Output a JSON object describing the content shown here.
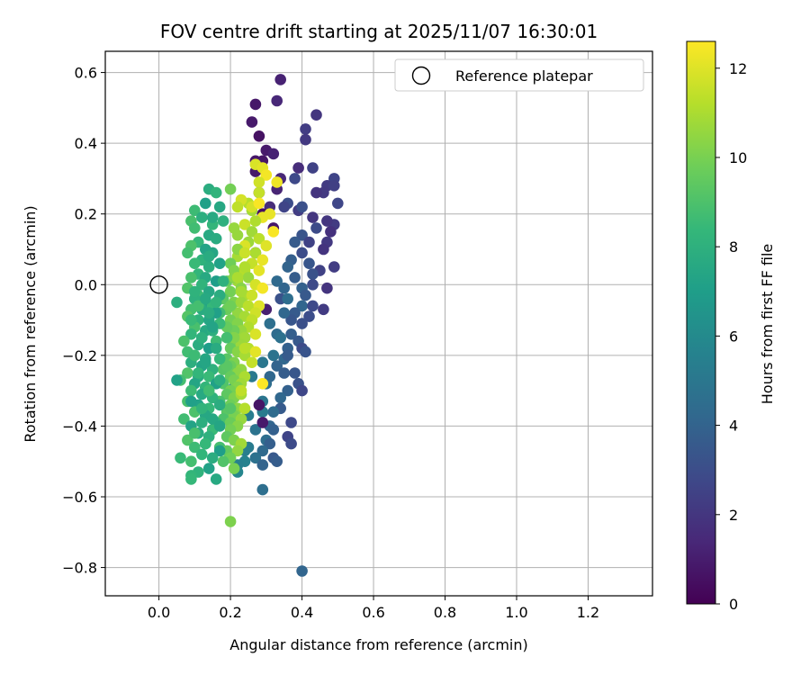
{
  "chart_data": {
    "type": "scatter",
    "title": "FOV centre drift starting at 2025/11/07 16:30:01",
    "xlabel": "Angular distance from reference (arcmin)",
    "ylabel": "Rotation from reference (arcmin)",
    "xlim": [
      -0.15,
      1.38
    ],
    "ylim": [
      -0.88,
      0.66
    ],
    "xticks": [
      0.0,
      0.2,
      0.4,
      0.6,
      0.8,
      1.0,
      1.2
    ],
    "xtick_labels": [
      "0.0",
      "0.2",
      "0.4",
      "0.6",
      "0.8",
      "1.0",
      "1.2"
    ],
    "yticks": [
      0.6,
      0.4,
      0.2,
      0.0,
      -0.2,
      -0.4,
      -0.6,
      -0.8
    ],
    "ytick_labels": [
      "0.6",
      "0.4",
      "0.2",
      "0.0",
      "−0.2",
      "−0.4",
      "−0.6",
      "−0.8"
    ],
    "grid": true,
    "legend": {
      "placement": "top-right",
      "entries": [
        "Reference platepar"
      ]
    },
    "reference_point": {
      "x": 0.0,
      "y": 0.0
    },
    "colorbar": {
      "label": "Hours from first FF file",
      "range": [
        0,
        12.6
      ],
      "ticks": [
        0,
        2,
        4,
        6,
        8,
        10,
        12
      ],
      "tick_labels": [
        "0",
        "2",
        "4",
        "6",
        "8",
        "10",
        "12"
      ],
      "colormap": "viridis"
    },
    "colormap_stops": [
      "#440154",
      "#482878",
      "#3e4989",
      "#31688e",
      "#26828e",
      "#1f9e89",
      "#35b779",
      "#6ece58",
      "#b5de2b",
      "#fde725"
    ],
    "series": [
      {
        "x": [
          0.34,
          0.33,
          0.44,
          0.27,
          0.26,
          0.41,
          0.41,
          0.28,
          0.3,
          0.29,
          0.32,
          0.27,
          0.43,
          0.39,
          0.49,
          0.47,
          0.34,
          0.38,
          0.49,
          0.46,
          0.44,
          0.5,
          0.36,
          0.31,
          0.39,
          0.35,
          0.4,
          0.43,
          0.49,
          0.47,
          0.48,
          0.44,
          0.47,
          0.4,
          0.42,
          0.38,
          0.46,
          0.4,
          0.49,
          0.42,
          0.37,
          0.45,
          0.43,
          0.36,
          0.38,
          0.43,
          0.4,
          0.41,
          0.35,
          0.33,
          0.34,
          0.47,
          0.4,
          0.43,
          0.38,
          0.36,
          0.42,
          0.46,
          0.37,
          0.35,
          0.31,
          0.4,
          0.33,
          0.37,
          0.39,
          0.34,
          0.36,
          0.4,
          0.35,
          0.41,
          0.36,
          0.32,
          0.33,
          0.29,
          0.35,
          0.3,
          0.38,
          0.26,
          0.39,
          0.4,
          0.36,
          0.34,
          0.29,
          0.34,
          0.32,
          0.29,
          0.37,
          0.31,
          0.25,
          0.27,
          0.32,
          0.3,
          0.36,
          0.31,
          0.37,
          0.29,
          0.25,
          0.24,
          0.32,
          0.27,
          0.29,
          0.24,
          0.33,
          0.22,
          0.22,
          0.29,
          0.24,
          0.31,
          0.21,
          0.28,
          0.29,
          0.4,
          0.3,
          0.29,
          0.27,
          0.28,
          0.32,
          0.27,
          0.33
        ],
        "y": [
          0.58,
          0.52,
          0.48,
          0.51,
          0.46,
          0.44,
          0.41,
          0.42,
          0.38,
          0.35,
          0.37,
          0.35,
          0.33,
          0.33,
          0.3,
          0.28,
          0.3,
          0.3,
          0.28,
          0.26,
          0.26,
          0.23,
          0.23,
          0.22,
          0.21,
          0.22,
          0.22,
          0.19,
          0.17,
          0.18,
          0.15,
          0.16,
          0.12,
          0.14,
          0.12,
          0.12,
          0.1,
          0.09,
          0.05,
          0.06,
          0.07,
          0.04,
          0.03,
          0.05,
          0.02,
          0.0,
          -0.01,
          -0.03,
          -0.01,
          0.01,
          -0.04,
          -0.01,
          -0.06,
          -0.06,
          -0.08,
          -0.04,
          -0.09,
          -0.07,
          -0.1,
          -0.08,
          -0.11,
          -0.11,
          -0.14,
          -0.14,
          -0.16,
          -0.15,
          -0.18,
          -0.18,
          -0.21,
          -0.19,
          -0.2,
          -0.2,
          -0.23,
          -0.22,
          -0.25,
          -0.28,
          -0.25,
          -0.26,
          -0.28,
          -0.3,
          -0.3,
          -0.32,
          -0.33,
          -0.35,
          -0.36,
          -0.36,
          -0.39,
          -0.4,
          -0.37,
          -0.41,
          -0.41,
          -0.44,
          -0.43,
          -0.45,
          -0.45,
          -0.47,
          -0.46,
          -0.47,
          -0.49,
          -0.49,
          -0.51,
          -0.5,
          -0.5,
          -0.51,
          -0.53,
          -0.58,
          -0.15,
          -0.26,
          -0.29,
          -0.34,
          -0.39,
          -0.81,
          -0.07,
          0.2,
          0.32,
          0.26,
          0.16,
          0.09,
          0.27
        ],
        "c": [
          1.2,
          1.4,
          2.0,
          0.8,
          0.9,
          2.3,
          2.1,
          0.6,
          0.9,
          0.7,
          1.2,
          0.8,
          2.5,
          1.6,
          2.6,
          2.2,
          1.4,
          2.8,
          2.4,
          2.1,
          1.9,
          2.7,
          3.0,
          1.6,
          2.3,
          2.6,
          3.1,
          2.0,
          2.2,
          2.0,
          1.8,
          2.9,
          2.1,
          3.3,
          2.5,
          3.6,
          1.9,
          3.0,
          2.3,
          3.4,
          3.8,
          2.5,
          3.2,
          4.0,
          3.7,
          2.9,
          3.9,
          3.5,
          4.1,
          4.3,
          3.2,
          1.9,
          4.1,
          2.8,
          3.6,
          4.5,
          3.0,
          2.2,
          3.4,
          4.2,
          4.6,
          3.1,
          4.4,
          3.8,
          3.5,
          4.7,
          3.9,
          2.9,
          4.2,
          3.3,
          3.6,
          4.8,
          4.0,
          5.0,
          3.7,
          4.5,
          3.4,
          5.1,
          3.2,
          2.7,
          3.9,
          4.2,
          4.9,
          3.6,
          4.4,
          5.2,
          2.8,
          4.1,
          5.3,
          4.8,
          3.9,
          4.5,
          2.6,
          3.8,
          2.9,
          4.3,
          5.2,
          5.4,
          3.5,
          4.7,
          4.0,
          5.6,
          3.7,
          5.5,
          5.8,
          4.6,
          5.1,
          4.2,
          5.9,
          0.7,
          0.9,
          4.1,
          1.1,
          0.5,
          0.9,
          0.6,
          0.8,
          1.0,
          1.3
        ]
      },
      {
        "x": [
          0.27,
          0.29,
          0.3,
          0.28,
          0.33,
          0.28,
          0.25,
          0.26,
          0.23,
          0.22,
          0.29,
          0.27,
          0.21,
          0.24,
          0.26,
          0.32,
          0.28,
          0.3,
          0.25,
          0.24,
          0.23,
          0.27,
          0.29,
          0.22,
          0.2,
          0.26,
          0.21,
          0.24,
          0.28,
          0.25,
          0.19,
          0.22,
          0.27,
          0.23,
          0.29,
          0.2,
          0.24,
          0.26,
          0.18,
          0.21,
          0.23,
          0.25,
          0.28,
          0.27,
          0.19,
          0.22,
          0.24,
          0.2,
          0.26,
          0.22,
          0.25,
          0.23,
          0.21,
          0.27,
          0.24,
          0.19,
          0.21,
          0.23,
          0.2,
          0.25,
          0.22,
          0.27,
          0.24,
          0.19,
          0.21,
          0.26,
          0.2,
          0.23,
          0.18,
          0.22,
          0.24,
          0.2,
          0.21,
          0.23,
          0.18,
          0.22,
          0.2,
          0.19,
          0.21,
          0.23,
          0.17,
          0.2,
          0.22,
          0.24,
          0.19,
          0.21,
          0.23,
          0.18,
          0.2,
          0.22,
          0.2,
          0.19,
          0.21,
          0.23,
          0.17,
          0.19,
          0.22,
          0.2,
          0.18,
          0.21,
          0.19,
          0.23,
          0.22,
          0.17,
          0.2,
          0.24,
          0.21,
          0.19,
          0.22,
          0.2,
          0.24,
          0.21,
          0.2,
          0.29,
          0.23,
          0.26,
          0.31,
          0.28,
          0.24,
          0.22
        ],
        "y": [
          0.34,
          0.33,
          0.31,
          0.29,
          0.29,
          0.26,
          0.23,
          0.21,
          0.24,
          0.22,
          0.19,
          0.18,
          0.16,
          0.17,
          0.15,
          0.15,
          0.13,
          0.11,
          0.12,
          0.11,
          0.09,
          0.09,
          0.07,
          0.08,
          0.06,
          0.06,
          0.04,
          0.04,
          0.04,
          0.02,
          0.01,
          0.01,
          0.0,
          -0.01,
          -0.01,
          -0.02,
          -0.03,
          -0.03,
          -0.04,
          -0.05,
          -0.05,
          -0.06,
          -0.06,
          -0.08,
          -0.07,
          -0.08,
          -0.09,
          -0.1,
          -0.1,
          -0.11,
          -0.12,
          -0.13,
          -0.13,
          -0.14,
          -0.15,
          -0.15,
          -0.16,
          -0.17,
          -0.18,
          -0.18,
          -0.19,
          -0.19,
          -0.2,
          -0.21,
          -0.22,
          -0.22,
          -0.23,
          -0.24,
          -0.24,
          -0.25,
          -0.26,
          -0.26,
          -0.27,
          -0.28,
          -0.28,
          -0.29,
          -0.3,
          -0.31,
          -0.32,
          -0.31,
          -0.33,
          -0.34,
          -0.35,
          -0.35,
          -0.36,
          -0.37,
          -0.38,
          -0.38,
          -0.39,
          -0.4,
          -0.41,
          -0.43,
          -0.44,
          -0.45,
          -0.46,
          -0.47,
          -0.47,
          -0.49,
          -0.5,
          -0.52,
          -0.12,
          -0.02,
          0.1,
          -0.08,
          0.27,
          0.05,
          -0.15,
          -0.23,
          0.14,
          -0.06,
          -0.18,
          0.02,
          -0.67,
          -0.28,
          -0.3,
          0.22,
          0.2,
          0.23,
          0.09,
          0.02
        ],
        "c": [
          11.9,
          12.1,
          12.4,
          11.7,
          12.3,
          11.5,
          11.2,
          10.9,
          11.8,
          11.4,
          12.2,
          11.1,
          10.6,
          11.6,
          10.8,
          12.5,
          11.3,
          12.0,
          10.7,
          11.9,
          10.4,
          11.0,
          12.2,
          10.9,
          9.8,
          11.5,
          10.2,
          11.2,
          12.1,
          10.6,
          9.6,
          10.8,
          11.8,
          10.3,
          12.4,
          9.9,
          11.0,
          11.6,
          9.4,
          10.1,
          10.7,
          11.3,
          12.0,
          11.7,
          9.7,
          10.5,
          10.9,
          9.9,
          11.4,
          10.2,
          11.1,
          10.6,
          9.8,
          11.9,
          10.8,
          9.5,
          10.0,
          10.7,
          9.6,
          11.2,
          10.3,
          12.1,
          10.9,
          9.3,
          10.1,
          11.5,
          9.7,
          10.5,
          9.2,
          10.4,
          11.0,
          9.6,
          10.0,
          10.8,
          9.1,
          10.2,
          9.9,
          9.4,
          10.1,
          10.9,
          8.9,
          9.8,
          10.4,
          11.2,
          9.3,
          10.0,
          10.6,
          9.0,
          9.7,
          10.3,
          9.9,
          9.4,
          10.1,
          10.8,
          8.8,
          9.5,
          10.5,
          9.8,
          9.1,
          10.0,
          9.6,
          10.9,
          10.4,
          8.7,
          9.9,
          11.1,
          10.2,
          9.3,
          10.6,
          9.8,
          11.3,
          10.3,
          10.1,
          12.6,
          11.4,
          11.8,
          12.2,
          12.5,
          11.6,
          11.0
        ]
      },
      {
        "x": [
          0.14,
          0.1,
          0.16,
          0.13,
          0.09,
          0.17,
          0.12,
          0.15,
          0.1,
          0.14,
          0.18,
          0.11,
          0.09,
          0.13,
          0.16,
          0.08,
          0.12,
          0.15,
          0.1,
          0.14,
          0.17,
          0.11,
          0.13,
          0.09,
          0.16,
          0.12,
          0.08,
          0.14,
          0.11,
          0.17,
          0.1,
          0.13,
          0.15,
          0.09,
          0.12,
          0.16,
          0.08,
          0.11,
          0.14,
          0.17,
          0.1,
          0.13,
          0.15,
          0.09,
          0.12,
          0.07,
          0.16,
          0.11,
          0.14,
          0.08,
          0.1,
          0.13,
          0.17,
          0.09,
          0.12,
          0.15,
          0.08,
          0.11,
          0.14,
          0.06,
          0.1,
          0.16,
          0.13,
          0.09,
          0.12,
          0.15,
          0.08,
          0.11,
          0.17,
          0.14,
          0.1,
          0.13,
          0.07,
          0.12,
          0.16,
          0.09,
          0.15,
          0.11,
          0.14,
          0.08,
          0.13,
          0.1,
          0.17,
          0.12,
          0.15,
          0.09,
          0.14,
          0.11,
          0.16,
          0.13,
          0.1,
          0.15,
          0.12,
          0.09,
          0.14,
          0.17,
          0.11,
          0.13,
          0.1,
          0.16,
          0.12,
          0.15,
          0.09,
          0.14,
          0.11,
          0.13,
          0.1,
          0.05,
          0.05,
          0.06,
          0.09,
          0.09,
          0.17,
          0.2,
          0.19,
          0.15,
          0.18,
          0.14,
          0.16
        ],
        "y": [
          0.27,
          0.21,
          0.26,
          0.23,
          0.18,
          0.22,
          0.19,
          0.17,
          0.16,
          0.14,
          0.18,
          0.12,
          0.11,
          0.1,
          0.13,
          0.09,
          0.07,
          0.09,
          0.06,
          0.05,
          0.06,
          0.03,
          0.02,
          0.02,
          0.01,
          0.0,
          -0.01,
          -0.02,
          -0.03,
          -0.03,
          -0.04,
          -0.05,
          -0.06,
          -0.07,
          -0.07,
          -0.08,
          -0.09,
          -0.1,
          -0.1,
          -0.11,
          -0.12,
          -0.13,
          -0.13,
          -0.14,
          -0.15,
          -0.16,
          -0.16,
          -0.17,
          -0.18,
          -0.19,
          -0.2,
          -0.21,
          -0.21,
          -0.22,
          -0.23,
          -0.24,
          -0.25,
          -0.26,
          -0.26,
          -0.27,
          -0.28,
          -0.28,
          -0.29,
          -0.3,
          -0.31,
          -0.32,
          -0.33,
          -0.34,
          -0.34,
          -0.35,
          -0.36,
          -0.37,
          -0.38,
          -0.39,
          -0.39,
          -0.4,
          -0.41,
          -0.42,
          -0.43,
          -0.44,
          -0.45,
          -0.46,
          -0.47,
          -0.48,
          -0.49,
          -0.5,
          -0.52,
          -0.53,
          -0.55,
          -0.45,
          -0.42,
          -0.38,
          -0.35,
          -0.33,
          -0.3,
          -0.27,
          -0.25,
          -0.22,
          -0.2,
          -0.18,
          -0.15,
          -0.12,
          -0.1,
          -0.08,
          -0.06,
          -0.04,
          -0.02,
          -0.05,
          -0.27,
          -0.49,
          -0.54,
          -0.55,
          -0.4,
          -0.35,
          -0.15,
          0.19,
          0.01,
          0.08,
          -0.05
        ],
        "c": [
          7.8,
          8.6,
          8.2,
          7.1,
          8.9,
          7.5,
          7.9,
          8.3,
          8.7,
          7.6,
          8.0,
          8.4,
          9.0,
          7.3,
          7.7,
          8.8,
          8.1,
          7.4,
          8.5,
          7.9,
          7.2,
          8.3,
          7.6,
          8.9,
          7.0,
          8.2,
          9.1,
          7.5,
          8.6,
          7.8,
          8.0,
          7.3,
          8.4,
          8.8,
          7.7,
          7.1,
          9.2,
          8.1,
          7.4,
          8.5,
          8.9,
          7.6,
          7.9,
          8.3,
          7.2,
          9.0,
          8.6,
          7.8,
          7.0,
          8.7,
          8.2,
          7.5,
          8.4,
          7.9,
          7.3,
          8.0,
          9.1,
          7.7,
          8.5,
          8.8,
          7.4,
          7.1,
          8.3,
          8.6,
          7.6,
          8.1,
          8.9,
          7.2,
          7.8,
          8.4,
          9.0,
          7.5,
          8.7,
          7.9,
          8.2,
          7.3,
          8.5,
          7.7,
          8.0,
          9.1,
          7.4,
          8.6,
          7.0,
          8.3,
          7.8,
          8.8,
          7.2,
          8.1,
          7.6,
          8.4,
          8.9,
          7.5,
          8.2,
          7.1,
          8.7,
          7.9,
          8.3,
          7.4,
          8.6,
          7.7,
          8.0,
          7.3,
          8.5,
          7.8,
          8.8,
          7.6,
          8.1,
          7.9,
          7.2,
          8.5,
          8.3,
          8.4,
          7.4,
          9.2,
          8.8,
          7.6,
          8.0,
          7.7,
          8.2
        ]
      }
    ]
  }
}
